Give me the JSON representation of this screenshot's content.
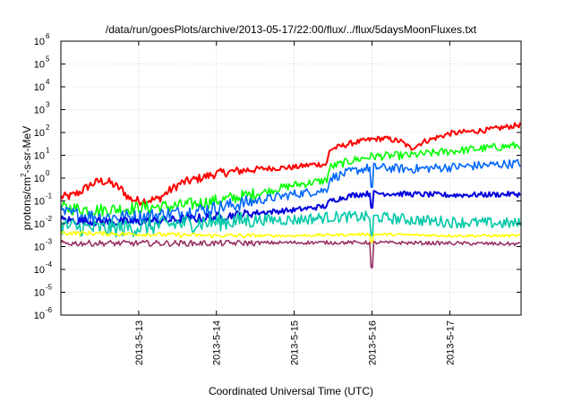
{
  "chart_data": {
    "type": "line",
    "title": "/data/run/goesPlots/archive/2013-05-17/22:00/flux/../flux/5daysMoonFluxes.txt",
    "xlabel": "Coordinated Universal Time (UTC)",
    "ylabel": {
      "before": "protons/cm",
      "sup": "2",
      "after": "-s-sr-MeV"
    },
    "scale": {
      "y": "log"
    },
    "grid": true,
    "legend": "none",
    "xlim": [
      "2013-05-12T00:00",
      "2013-05-17T22:00"
    ],
    "ylim": [
      1e-06,
      1000000.0
    ],
    "x_ticks": [
      {
        "x": "2013-05-13T00:00",
        "label": "2013-5-13"
      },
      {
        "x": "2013-05-14T00:00",
        "label": "2013-5-14"
      },
      {
        "x": "2013-05-15T00:00",
        "label": "2013-5-15"
      },
      {
        "x": "2013-05-16T00:00",
        "label": "2013-5-16"
      },
      {
        "x": "2013-05-17T00:00",
        "label": "2013-5-17"
      }
    ],
    "y_ticks": [
      {
        "value": 1e-06,
        "base": "10",
        "exp": "-6"
      },
      {
        "value": 1e-05,
        "base": "10",
        "exp": "-5"
      },
      {
        "value": 0.0001,
        "base": "10",
        "exp": "-4"
      },
      {
        "value": 0.001,
        "base": "10",
        "exp": "-3"
      },
      {
        "value": 0.01,
        "base": "10",
        "exp": "-2"
      },
      {
        "value": 0.1,
        "base": "10",
        "exp": "-1"
      },
      {
        "value": 1,
        "base": "10",
        "exp": "0"
      },
      {
        "value": 10.0,
        "base": "10",
        "exp": "1"
      },
      {
        "value": 100.0,
        "base": "10",
        "exp": "2"
      },
      {
        "value": 1000.0,
        "base": "10",
        "exp": "3"
      },
      {
        "value": 10000.0,
        "base": "10",
        "exp": "4"
      },
      {
        "value": 100000.0,
        "base": "10",
        "exp": "5"
      },
      {
        "value": 1000000.0,
        "base": "10",
        "exp": "6"
      }
    ],
    "series": [
      {
        "color": "#ff0000",
        "noise": 0.12,
        "points": [
          [
            "2013-05-12T00:00",
            0.15
          ],
          [
            "2013-05-12T03:00",
            0.16
          ],
          [
            "2013-05-12T06:00",
            0.25
          ],
          [
            "2013-05-12T09:00",
            0.5
          ],
          [
            "2013-05-12T12:00",
            0.75
          ],
          [
            "2013-05-12T15:00",
            0.65
          ],
          [
            "2013-05-12T19:00",
            0.3
          ],
          [
            "2013-05-12T21:00",
            0.13
          ],
          [
            "2013-05-13T00:00",
            0.1
          ],
          [
            "2013-05-13T06:00",
            0.12
          ],
          [
            "2013-05-13T09:00",
            0.25
          ],
          [
            "2013-05-13T13:00",
            0.6
          ],
          [
            "2013-05-13T19:00",
            1.0
          ],
          [
            "2013-05-14T00:00",
            1.6
          ],
          [
            "2013-05-14T12:00",
            2.5
          ],
          [
            "2013-05-15T00:00",
            3.0
          ],
          [
            "2013-05-15T06:00",
            4.0
          ],
          [
            "2013-05-15T10:00",
            4.0
          ],
          [
            "2013-05-15T11:00",
            18.0
          ],
          [
            "2013-05-15T18:00",
            35.0
          ],
          [
            "2013-05-16T00:00",
            50.0
          ],
          [
            "2013-05-16T04:00",
            55.0
          ],
          [
            "2013-05-16T09:00",
            40.0
          ],
          [
            "2013-05-16T12:00",
            20.0
          ],
          [
            "2013-05-16T16:00",
            40.0
          ],
          [
            "2013-05-16T20:00",
            60.0
          ],
          [
            "2013-05-17T00:00",
            90.0
          ],
          [
            "2013-05-17T12:00",
            130.0
          ],
          [
            "2013-05-17T22:00",
            220.0
          ]
        ]
      },
      {
        "color": "#00ff00",
        "noise": 0.18,
        "points": [
          [
            "2013-05-12T00:00",
            0.05
          ],
          [
            "2013-05-12T12:00",
            0.04
          ],
          [
            "2013-05-13T00:00",
            0.05
          ],
          [
            "2013-05-13T12:00",
            0.06
          ],
          [
            "2013-05-14T00:00",
            0.1
          ],
          [
            "2013-05-14T12:00",
            0.2
          ],
          [
            "2013-05-15T00:00",
            0.5
          ],
          [
            "2013-05-15T10:00",
            0.8
          ],
          [
            "2013-05-15T11:00",
            3.0
          ],
          [
            "2013-05-15T18:00",
            6.0
          ],
          [
            "2013-05-16T00:00",
            9.0
          ],
          [
            "2013-05-16T12:00",
            10.0
          ],
          [
            "2013-05-17T00:00",
            15.0
          ],
          [
            "2013-05-17T22:00",
            28.0
          ]
        ]
      },
      {
        "color": "#0066ff",
        "noise": 0.2,
        "dips": [
          [
            "2013-05-16T00:00",
            0.4
          ]
        ],
        "points": [
          [
            "2013-05-12T00:00",
            0.03
          ],
          [
            "2013-05-12T12:00",
            0.02
          ],
          [
            "2013-05-13T00:00",
            0.02
          ],
          [
            "2013-05-13T12:00",
            0.03
          ],
          [
            "2013-05-14T00:00",
            0.05
          ],
          [
            "2013-05-14T12:00",
            0.1
          ],
          [
            "2013-05-15T00:00",
            0.2
          ],
          [
            "2013-05-15T10:00",
            0.3
          ],
          [
            "2013-05-15T11:00",
            1.0
          ],
          [
            "2013-05-15T18:00",
            2.0
          ],
          [
            "2013-05-16T00:00",
            3.0
          ],
          [
            "2013-05-16T12:00",
            2.5
          ],
          [
            "2013-05-17T00:00",
            3.0
          ],
          [
            "2013-05-17T22:00",
            4.5
          ]
        ]
      },
      {
        "color": "#0000dd",
        "noise": 0.12,
        "dips": [
          [
            "2013-05-16T00:00",
            0.05
          ]
        ],
        "points": [
          [
            "2013-05-12T00:00",
            0.015
          ],
          [
            "2013-05-12T12:00",
            0.012
          ],
          [
            "2013-05-13T00:00",
            0.012
          ],
          [
            "2013-05-13T12:00",
            0.015
          ],
          [
            "2013-05-14T00:00",
            0.02
          ],
          [
            "2013-05-14T12:00",
            0.03
          ],
          [
            "2013-05-15T00:00",
            0.04
          ],
          [
            "2013-05-15T10:00",
            0.06
          ],
          [
            "2013-05-15T11:00",
            0.1
          ],
          [
            "2013-05-15T18:00",
            0.18
          ],
          [
            "2013-05-16T00:00",
            0.22
          ],
          [
            "2013-05-16T12:00",
            0.2
          ],
          [
            "2013-05-17T00:00",
            0.18
          ],
          [
            "2013-05-17T22:00",
            0.2
          ]
        ]
      },
      {
        "color": "#00c8a8",
        "noise": 0.25,
        "dips": [
          [
            "2013-05-16T00:00",
            0.003
          ]
        ],
        "points": [
          [
            "2013-05-12T00:00",
            0.008
          ],
          [
            "2013-05-12T12:00",
            0.006
          ],
          [
            "2013-05-13T00:00",
            0.007
          ],
          [
            "2013-05-13T12:00",
            0.01
          ],
          [
            "2013-05-14T00:00",
            0.012
          ],
          [
            "2013-05-14T12:00",
            0.015
          ],
          [
            "2013-05-15T00:00",
            0.015
          ],
          [
            "2013-05-15T12:00",
            0.02
          ],
          [
            "2013-05-16T00:00",
            0.02
          ],
          [
            "2013-05-16T12:00",
            0.015
          ],
          [
            "2013-05-17T00:00",
            0.012
          ],
          [
            "2013-05-17T22:00",
            0.01
          ]
        ]
      },
      {
        "color": "#ffff00",
        "noise": 0.06,
        "dips": [
          [
            "2013-05-16T00:00",
            0.0015
          ]
        ],
        "points": [
          [
            "2013-05-12T00:00",
            0.004
          ],
          [
            "2013-05-13T00:00",
            0.0035
          ],
          [
            "2013-05-14T00:00",
            0.003
          ],
          [
            "2013-05-15T00:00",
            0.003
          ],
          [
            "2013-05-16T00:00",
            0.0035
          ],
          [
            "2013-05-17T00:00",
            0.003
          ],
          [
            "2013-05-17T22:00",
            0.003
          ]
        ]
      },
      {
        "color": "#993366",
        "noise": 0.08,
        "dips": [
          [
            "2013-05-16T00:00",
            0.00012
          ]
        ],
        "points": [
          [
            "2013-05-12T00:00",
            0.0014
          ],
          [
            "2013-05-13T00:00",
            0.0014
          ],
          [
            "2013-05-14T00:00",
            0.0014
          ],
          [
            "2013-05-15T00:00",
            0.0015
          ],
          [
            "2013-05-16T00:00",
            0.0015
          ],
          [
            "2013-05-17T00:00",
            0.0014
          ],
          [
            "2013-05-17T22:00",
            0.0013
          ]
        ]
      }
    ]
  }
}
